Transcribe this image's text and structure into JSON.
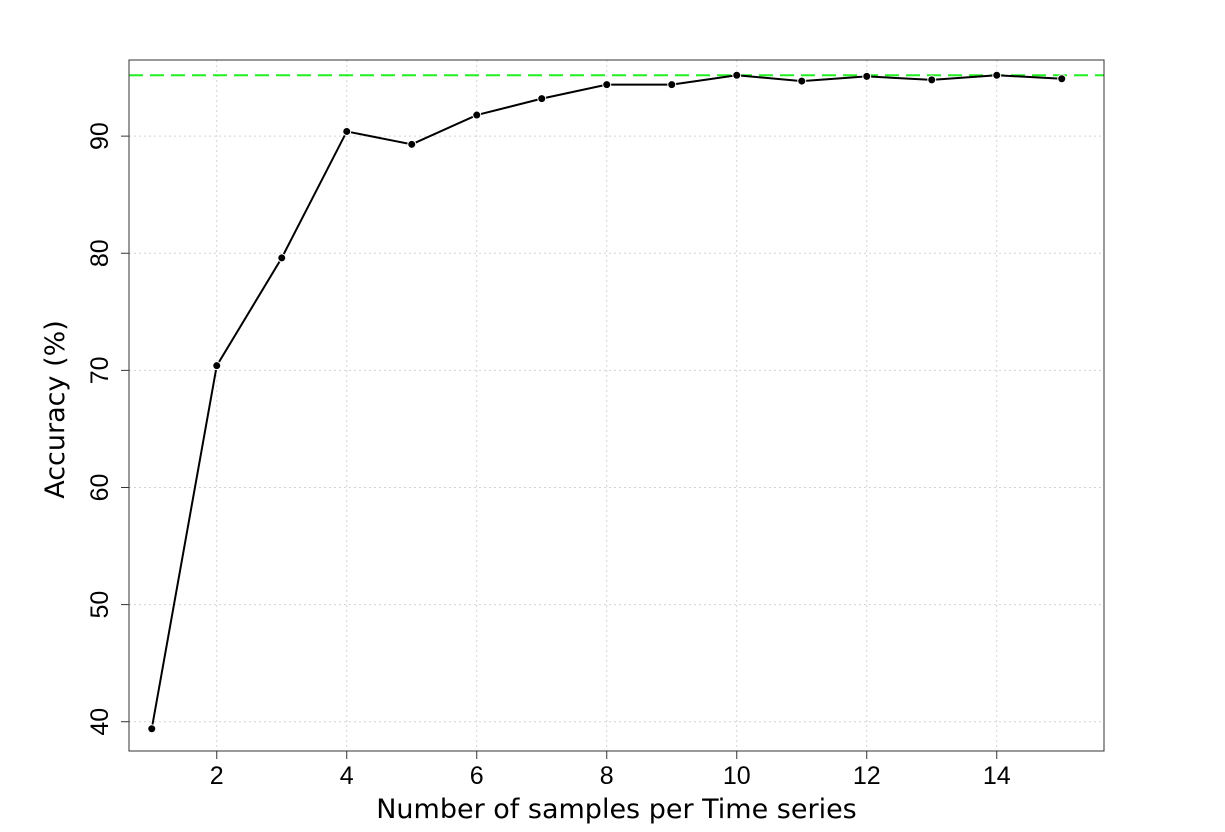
{
  "chart_data": {
    "type": "line",
    "title": "",
    "xlabel": "Number of samples per Time series",
    "ylabel": "Accuracy (%)",
    "xlim": [
      0.65,
      15.65
    ],
    "ylim": [
      37.5,
      96.5
    ],
    "x_ticks": [
      2,
      4,
      6,
      8,
      10,
      12,
      14
    ],
    "y_ticks": [
      40,
      50,
      60,
      70,
      80,
      90
    ],
    "grid": true,
    "x": [
      1,
      2,
      3,
      4,
      5,
      6,
      7,
      8,
      9,
      10,
      11,
      12,
      13,
      14,
      15
    ],
    "series": [
      {
        "values": [
          39.4,
          70.4,
          79.6,
          90.4,
          89.3,
          91.8,
          93.2,
          94.4,
          94.4,
          95.2,
          94.7,
          95.1,
          94.8,
          95.2,
          94.9
        ],
        "color": "#000000",
        "markers": true
      }
    ],
    "reference_line": {
      "y": 95.2,
      "color": "#22ee22",
      "style": "dashed"
    }
  }
}
